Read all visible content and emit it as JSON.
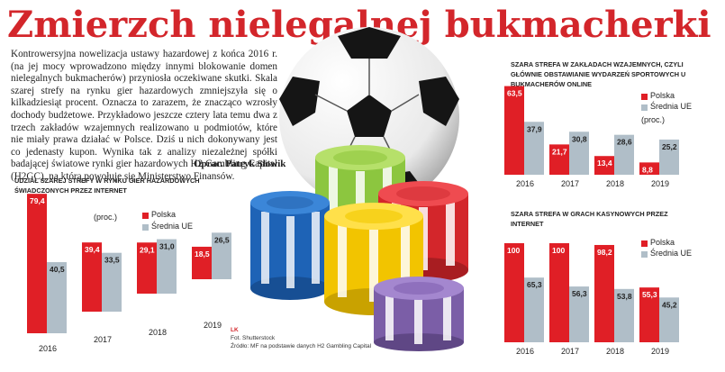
{
  "title": "Zmierzch nielegalnej bukmacherki",
  "lead": "Kontrowersyjna nowelizacja ustawy hazardowej z końca 2016 r. (na jej mocy wprowadzono między innymi blokowanie domen nielegalnych bukmacherów) przyniosła oczekiwane skutki. Skala szarej strefy na rynku gier hazardowych zmniejszyła się o kilkadziesiąt procent. Oznacza to zarazem, że znacząco wzrosły dochody budżetowe. Przykładowo jeszcze cztery lata temu dwa z trzech zakładów wzajemnych realizowano u podmiotów, które nie miały prawa działać w Polsce. Dziś u nich dokonywany jest co jedenasty kupon. Wynika tak z analizy niezależnej spółki badającej światowe rynki gier hazardowych H2 Gambling Capital (H2GC), na którą powołuje się Ministerstwo Finansów.",
  "author": "Oprac. Patryk Słowik",
  "credits": {
    "photo": "Fot. Shutterstock",
    "source": "Źródło: MF na podstawie danych H2 Gambling Capital",
    "badge": "LK"
  },
  "colors": {
    "polska": "#e01f26",
    "ue": "#b0bec8",
    "accent": "#d3262b"
  },
  "chart_data": [
    {
      "type": "bar",
      "title": "Udział szarej strefy w rynku gier hazardowych świadczonych przez internet",
      "unit": "(proc.)",
      "categories": [
        "2016",
        "2017",
        "2018",
        "2019"
      ],
      "series": [
        {
          "name": "Polska",
          "values": [
            79.4,
            39.4,
            29.1,
            18.5
          ],
          "labels": [
            "79,4",
            "39,4",
            "29,1",
            "18,5"
          ]
        },
        {
          "name": "Średnia UE",
          "values": [
            40.5,
            33.5,
            31.0,
            26.5
          ],
          "labels": [
            "40,5",
            "33,5",
            "31,0",
            "26,5"
          ]
        }
      ],
      "layout": "staggered"
    },
    {
      "type": "bar",
      "title": "Szara strefa w zakładach wzajemnych, czyli głównie obstawianie wydarzeń sportowych u bukmacherów online",
      "unit": "(proc.)",
      "categories": [
        "2016",
        "2017",
        "2018",
        "2019"
      ],
      "series": [
        {
          "name": "Polska",
          "values": [
            63.5,
            21.7,
            13.4,
            8.8
          ],
          "labels": [
            "63,5",
            "21,7",
            "13,4",
            "8,8"
          ]
        },
        {
          "name": "Średnia UE",
          "values": [
            37.9,
            30.8,
            28.6,
            25.2
          ],
          "labels": [
            "37,9",
            "30,8",
            "28,6",
            "25,2"
          ]
        }
      ]
    },
    {
      "type": "bar",
      "title": "Szara strefa w grach kasynowych przez internet",
      "unit": "",
      "categories": [
        "2016",
        "2017",
        "2018",
        "2019"
      ],
      "series": [
        {
          "name": "Polska",
          "values": [
            100,
            100,
            98.2,
            55.3
          ],
          "labels": [
            "100",
            "100",
            "98,2",
            "55,3"
          ]
        },
        {
          "name": "Średnia UE",
          "values": [
            65.3,
            56.3,
            53.8,
            45.2
          ],
          "labels": [
            "65,3",
            "56,3",
            "53,8",
            "45,2"
          ]
        }
      ]
    }
  ]
}
